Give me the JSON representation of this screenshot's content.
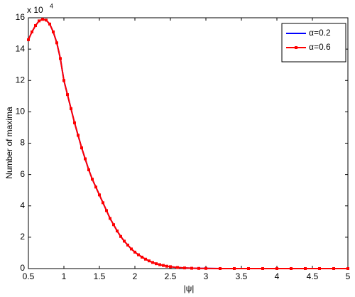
{
  "chart_data": {
    "type": "line",
    "xlabel": "|ψ|",
    "ylabel": "Number of maxima",
    "y_multiplier": {
      "base": "x 10",
      "exponent": "4"
    },
    "x": [
      0.5,
      0.55,
      0.6,
      0.65,
      0.7,
      0.75,
      0.8,
      0.85,
      0.9,
      0.95,
      1.0,
      1.05,
      1.1,
      1.15,
      1.2,
      1.25,
      1.3,
      1.35,
      1.4,
      1.45,
      1.5,
      1.55,
      1.6,
      1.65,
      1.7,
      1.75,
      1.8,
      1.85,
      1.9,
      1.95,
      2.0,
      2.05,
      2.1,
      2.15,
      2.2,
      2.25,
      2.3,
      2.35,
      2.4,
      2.45,
      2.5,
      2.6,
      2.7,
      2.8,
      2.9,
      3.0,
      3.2,
      3.4,
      3.6,
      3.8,
      4.0,
      4.2,
      4.4,
      4.6,
      4.8,
      5.0
    ],
    "series": [
      {
        "name": "α=0.2",
        "color": "#0000ff",
        "markers": false,
        "values": [
          14.6,
          15.1,
          15.5,
          15.8,
          15.9,
          15.85,
          15.6,
          15.1,
          14.4,
          13.4,
          12.0,
          11.1,
          10.2,
          9.3,
          8.5,
          7.7,
          7.0,
          6.3,
          5.7,
          5.2,
          4.7,
          4.2,
          3.7,
          3.2,
          2.8,
          2.4,
          2.05,
          1.75,
          1.5,
          1.25,
          1.05,
          0.88,
          0.73,
          0.6,
          0.49,
          0.39,
          0.31,
          0.25,
          0.2,
          0.15,
          0.12,
          0.07,
          0.04,
          0.02,
          0.01,
          0.01,
          0,
          0,
          0,
          0,
          0,
          0,
          0,
          0,
          0,
          0
        ]
      },
      {
        "name": "α=0.6",
        "color": "#ff0000",
        "markers": true,
        "values": [
          14.6,
          15.1,
          15.5,
          15.8,
          15.9,
          15.85,
          15.6,
          15.1,
          14.4,
          13.4,
          12.0,
          11.1,
          10.2,
          9.3,
          8.5,
          7.7,
          7.0,
          6.3,
          5.7,
          5.2,
          4.7,
          4.2,
          3.7,
          3.2,
          2.8,
          2.4,
          2.05,
          1.75,
          1.5,
          1.25,
          1.05,
          0.88,
          0.73,
          0.6,
          0.49,
          0.39,
          0.31,
          0.25,
          0.2,
          0.15,
          0.12,
          0.07,
          0.04,
          0.02,
          0.01,
          0.01,
          0,
          0,
          0,
          0,
          0,
          0,
          0,
          0,
          0,
          0
        ]
      }
    ],
    "xlim": [
      0.5,
      5
    ],
    "ylim": [
      0,
      16
    ],
    "xticks": [
      0.5,
      1,
      1.5,
      2,
      2.5,
      3,
      3.5,
      4,
      4.5,
      5
    ],
    "yticks": [
      0,
      2,
      4,
      6,
      8,
      10,
      12,
      14,
      16
    ],
    "legend": "upper right",
    "grid": false
  }
}
